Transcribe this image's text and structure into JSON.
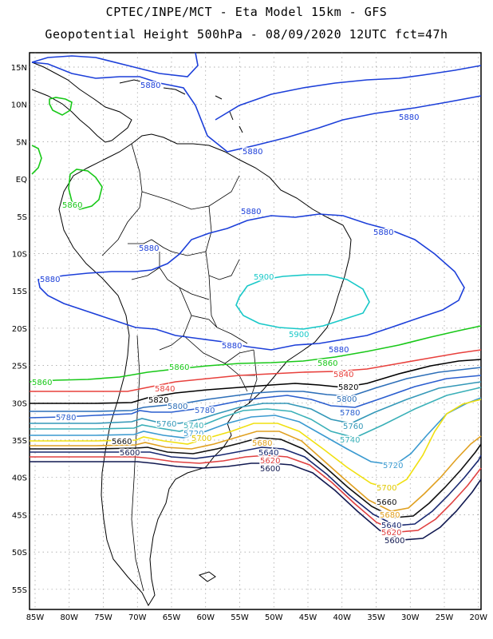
{
  "header": {
    "line1": "CPTEC/INPE/MCT -  Eta Model 15km - GFS",
    "line2": "Geopotential Height 500hPa - 08/09/2020 12UTC fct=47h"
  },
  "axes": {
    "lat_labels": [
      "15N",
      "10N",
      "5N",
      "EQ",
      "5S",
      "10S",
      "15S",
      "20S",
      "25S",
      "30S",
      "35S",
      "40S",
      "45S",
      "50S",
      "55S"
    ],
    "lon_labels": [
      "85W",
      "80W",
      "75W",
      "70W",
      "65W",
      "60W",
      "55W",
      "50W",
      "45W",
      "40W",
      "35W",
      "30W",
      "25W",
      "20W"
    ]
  },
  "contours": [
    {
      "value": "5880",
      "color": "#1c3fd9",
      "labels": [
        "5880",
        "5880",
        "5880",
        "5880",
        "5880",
        "5880",
        "5880",
        "5880"
      ]
    },
    {
      "value": "5900",
      "color": "#18c8c8",
      "labels": [
        "5900",
        "5900"
      ]
    },
    {
      "value": "5860",
      "color": "#18c818",
      "labels": [
        "5860",
        "5860",
        "5860",
        "5860"
      ]
    },
    {
      "value": "5840",
      "color": "#e8403c",
      "labels": [
        "5840",
        "5840"
      ]
    },
    {
      "value": "5820",
      "color": "#000000",
      "labels": [
        "5820",
        "5820"
      ]
    },
    {
      "value": "5800",
      "color": "#2d6fb8",
      "labels": [
        "5800",
        "5800"
      ]
    },
    {
      "value": "5780",
      "color": "#2a5ecf",
      "labels": [
        "5780",
        "5780",
        "5780"
      ]
    },
    {
      "value": "5760",
      "color": "#3498b8",
      "labels": [
        "5760",
        "5760"
      ]
    },
    {
      "value": "5740",
      "color": "#3ab0b8",
      "labels": [
        "5740",
        "5740"
      ]
    },
    {
      "value": "5720",
      "color": "#3a9ad0",
      "labels": [
        "5720",
        "5720"
      ]
    },
    {
      "value": "5700",
      "color": "#f0e010",
      "labels": [
        "5700",
        "5700"
      ]
    },
    {
      "value": "5680",
      "color": "#e0a020",
      "labels": [
        "5680",
        "5680"
      ]
    },
    {
      "value": "5660",
      "color": "#101010",
      "labels": [
        "5660",
        "5660"
      ]
    },
    {
      "value": "5640",
      "color": "#182870",
      "labels": [
        "5640",
        "5640"
      ]
    },
    {
      "value": "5620",
      "color": "#e04040",
      "labels": [
        "5620",
        "5620"
      ]
    },
    {
      "value": "5600",
      "color": "#101850",
      "labels": [
        "5600",
        "5600"
      ]
    }
  ]
}
